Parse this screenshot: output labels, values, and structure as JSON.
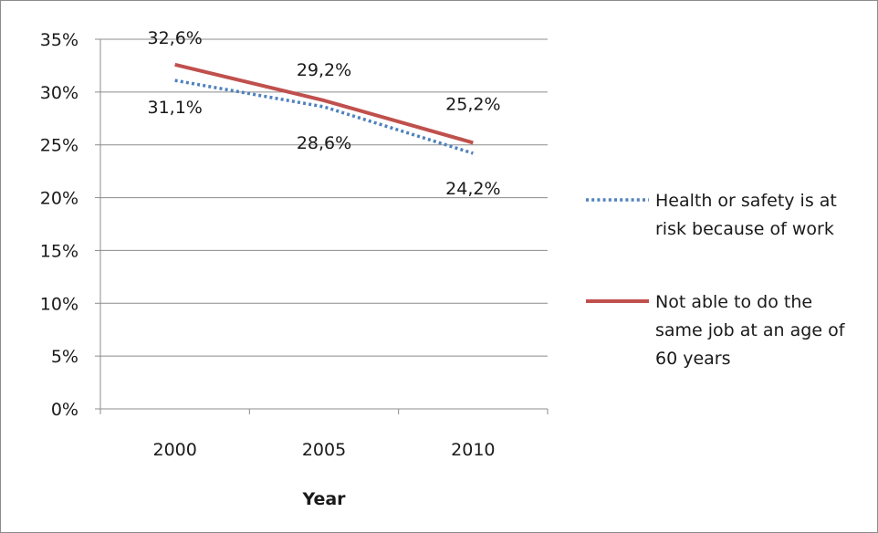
{
  "chart_data": {
    "type": "line",
    "title": "",
    "xlabel": "Year",
    "ylabel": "",
    "categories": [
      "2000",
      "2005",
      "2010"
    ],
    "ylim": [
      0,
      35
    ],
    "y_ticks": [
      0,
      5,
      10,
      15,
      20,
      25,
      30,
      35
    ],
    "y_tick_labels": [
      "0%",
      "5%",
      "10%",
      "15%",
      "20%",
      "25%",
      "30%",
      "35%"
    ],
    "grid": "horizontal",
    "legend_position": "right",
    "series": [
      {
        "name": "Health or safety is at risk because of work",
        "legend_lines": [
          "Health or safety is at",
          "risk because of work"
        ],
        "values": [
          31.1,
          28.6,
          24.2
        ],
        "data_labels": [
          "31,1%",
          "28,6%",
          "24,2%"
        ],
        "color": "#4f81bd",
        "line_style": "dotted"
      },
      {
        "name": "Not able to do the same job at an age of 60 years",
        "legend_lines": [
          "Not able to do the",
          "same job at an age of",
          "60 years"
        ],
        "values": [
          32.6,
          29.2,
          25.2
        ],
        "data_labels": [
          "32,6%",
          "29,2%",
          "25,2%"
        ],
        "color": "#c0504d",
        "line_style": "solid"
      }
    ]
  }
}
